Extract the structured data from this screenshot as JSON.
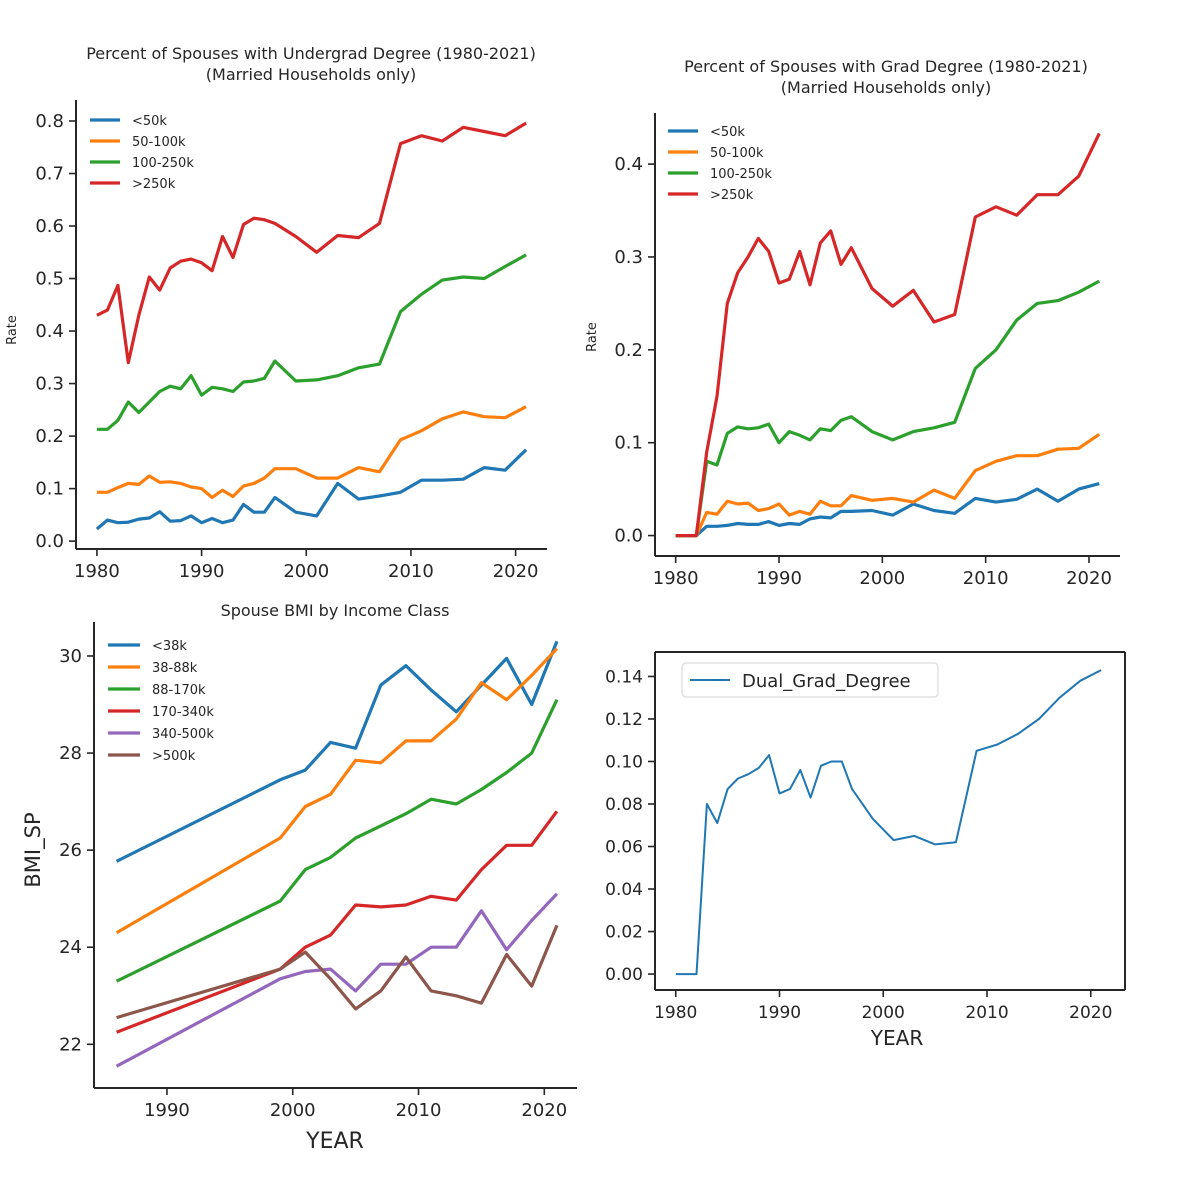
{
  "chart_data": [
    {
      "type": "line",
      "title": [
        "Percent of Spouses with Undergrad Degree (1980-2021)",
        "(Married Households only)"
      ],
      "xlabel": "",
      "ylabel": "Rate",
      "xlim": [
        1978,
        2023
      ],
      "ylim": [
        -0.015,
        0.84
      ],
      "xticks": [
        1980,
        1990,
        2000,
        2010,
        2020
      ],
      "yticks": [
        0.0,
        0.1,
        0.2,
        0.3,
        0.4,
        0.5,
        0.6,
        0.7,
        0.8
      ],
      "ytick_decimals": 1,
      "legend": "top-left",
      "x": [
        1980,
        1981,
        1982,
        1983,
        1984,
        1985,
        1986,
        1987,
        1988,
        1989,
        1990,
        1991,
        1992,
        1993,
        1994,
        1995,
        1996,
        1997,
        1999,
        2001,
        2003,
        2005,
        2007,
        2009,
        2011,
        2013,
        2015,
        2017,
        2019,
        2021
      ],
      "series": [
        {
          "name": "<50k",
          "color": "#1f77b4",
          "values": [
            0.023,
            0.04,
            0.035,
            0.036,
            0.042,
            0.044,
            0.056,
            0.038,
            0.039,
            0.048,
            0.035,
            0.043,
            0.035,
            0.04,
            0.07,
            0.055,
            0.055,
            0.083,
            0.055,
            0.048,
            0.11,
            0.08,
            0.086,
            0.093,
            0.116,
            0.116,
            0.118,
            0.14,
            0.135,
            0.174
          ]
        },
        {
          "name": "50-100k",
          "color": "#ff7f0e",
          "values": [
            0.093,
            0.093,
            0.102,
            0.11,
            0.108,
            0.124,
            0.112,
            0.113,
            0.11,
            0.103,
            0.1,
            0.083,
            0.097,
            0.085,
            0.105,
            0.11,
            0.12,
            0.138,
            0.138,
            0.12,
            0.12,
            0.14,
            0.132,
            0.193,
            0.21,
            0.233,
            0.246,
            0.237,
            0.235,
            0.256
          ]
        },
        {
          "name": "100-250k",
          "color": "#2ca02c",
          "values": [
            0.213,
            0.213,
            0.23,
            0.265,
            0.245,
            0.265,
            0.285,
            0.295,
            0.29,
            0.315,
            0.278,
            0.293,
            0.29,
            0.285,
            0.303,
            0.305,
            0.31,
            0.343,
            0.305,
            0.307,
            0.315,
            0.33,
            0.337,
            0.437,
            0.47,
            0.497,
            0.503,
            0.5,
            0.523,
            0.545
          ]
        },
        {
          "name": ">250k",
          "color": "#d62728",
          "values": [
            0.43,
            0.44,
            0.487,
            0.34,
            0.43,
            0.503,
            0.478,
            0.52,
            0.533,
            0.537,
            0.53,
            0.515,
            0.58,
            0.54,
            0.603,
            0.615,
            0.612,
            0.605,
            0.58,
            0.55,
            0.582,
            0.578,
            0.605,
            0.757,
            0.772,
            0.762,
            0.788,
            0.78,
            0.772,
            0.796
          ]
        }
      ]
    },
    {
      "type": "line",
      "title": [
        "Percent of Spouses with Grad Degree (1980-2021)",
        "(Married Households only)"
      ],
      "xlabel": "",
      "ylabel": "Rate",
      "xlim": [
        1978,
        2023
      ],
      "ylim": [
        -0.022,
        0.455
      ],
      "xticks": [
        1980,
        1990,
        2000,
        2010,
        2020
      ],
      "yticks": [
        0.0,
        0.1,
        0.2,
        0.3,
        0.4
      ],
      "ytick_decimals": 1,
      "legend": "top-left",
      "x": [
        1980,
        1981,
        1982,
        1983,
        1984,
        1985,
        1986,
        1987,
        1988,
        1989,
        1990,
        1991,
        1992,
        1993,
        1994,
        1995,
        1996,
        1997,
        1999,
        2001,
        2003,
        2005,
        2007,
        2009,
        2011,
        2013,
        2015,
        2017,
        2019,
        2021
      ],
      "series": [
        {
          "name": "<50k",
          "color": "#1f77b4",
          "values": [
            0,
            0,
            0,
            0.01,
            0.01,
            0.011,
            0.013,
            0.012,
            0.012,
            0.015,
            0.011,
            0.013,
            0.012,
            0.018,
            0.02,
            0.019,
            0.026,
            0.026,
            0.027,
            0.022,
            0.034,
            0.027,
            0.024,
            0.04,
            0.036,
            0.039,
            0.05,
            0.037,
            0.05,
            0.056
          ]
        },
        {
          "name": "50-100k",
          "color": "#ff7f0e",
          "values": [
            0,
            0,
            0,
            0.025,
            0.023,
            0.037,
            0.034,
            0.035,
            0.027,
            0.029,
            0.034,
            0.022,
            0.026,
            0.023,
            0.037,
            0.032,
            0.032,
            0.043,
            0.038,
            0.04,
            0.036,
            0.049,
            0.04,
            0.07,
            0.08,
            0.086,
            0.086,
            0.093,
            0.094,
            0.109
          ]
        },
        {
          "name": "100-250k",
          "color": "#2ca02c",
          "values": [
            0,
            0,
            0,
            0.08,
            0.076,
            0.11,
            0.117,
            0.115,
            0.116,
            0.12,
            0.1,
            0.112,
            0.108,
            0.103,
            0.115,
            0.113,
            0.124,
            0.128,
            0.112,
            0.103,
            0.112,
            0.116,
            0.122,
            0.18,
            0.2,
            0.232,
            0.25,
            0.253,
            0.262,
            0.274
          ]
        },
        {
          "name": ">250k",
          "color": "#d62728",
          "values": [
            0,
            0,
            0,
            0.09,
            0.15,
            0.25,
            0.283,
            0.3,
            0.32,
            0.306,
            0.272,
            0.276,
            0.306,
            0.27,
            0.315,
            0.328,
            0.292,
            0.31,
            0.266,
            0.247,
            0.264,
            0.23,
            0.238,
            0.343,
            0.354,
            0.345,
            0.367,
            0.367,
            0.387,
            0.433
          ]
        }
      ]
    },
    {
      "type": "line",
      "title": [
        "Spouse BMI by Income Class"
      ],
      "xlabel": "YEAR",
      "ylabel": "BMI_SP",
      "xlim": [
        1984.2,
        2022.6
      ],
      "ylim": [
        21.1,
        30.7
      ],
      "xticks": [
        1990,
        2000,
        2010,
        2020
      ],
      "yticks": [
        22,
        24,
        26,
        28,
        30
      ],
      "ytick_decimals": 0,
      "legend": "top-left",
      "x": [
        1986,
        1999,
        2001,
        2003,
        2005,
        2007,
        2009,
        2011,
        2013,
        2015,
        2017,
        2019,
        2021
      ],
      "series": [
        {
          "name": "<38k",
          "color": "#1f77b4",
          "values": [
            25.77,
            27.45,
            27.65,
            28.22,
            28.1,
            29.4,
            29.8,
            29.3,
            28.85,
            29.4,
            29.95,
            29.0,
            30.3
          ]
        },
        {
          "name": "38-88k",
          "color": "#ff7f0e",
          "values": [
            24.3,
            26.25,
            26.9,
            27.15,
            27.85,
            27.8,
            28.25,
            28.25,
            28.7,
            29.45,
            29.1,
            29.6,
            30.15
          ]
        },
        {
          "name": "88-170k",
          "color": "#2ca02c",
          "values": [
            23.3,
            24.95,
            25.6,
            25.85,
            26.25,
            26.5,
            26.75,
            27.05,
            26.95,
            27.25,
            27.6,
            28.0,
            29.1
          ]
        },
        {
          "name": "170-340k",
          "color": "#d62728",
          "values": [
            22.25,
            23.55,
            24.0,
            24.25,
            24.87,
            24.83,
            24.87,
            25.05,
            24.97,
            25.6,
            26.1,
            26.1,
            26.8
          ]
        },
        {
          "name": "340-500k",
          "color": "#9467bd",
          "values": [
            21.55,
            23.35,
            23.5,
            23.55,
            23.1,
            23.65,
            23.65,
            24.0,
            24.0,
            24.75,
            23.95,
            24.55,
            25.1
          ]
        },
        {
          "name": ">500k",
          "color": "#8c564b",
          "values": [
            22.55,
            23.55,
            23.9,
            23.35,
            22.73,
            23.1,
            23.8,
            23.1,
            23.0,
            22.85,
            23.85,
            23.2,
            24.45
          ]
        }
      ]
    },
    {
      "type": "line",
      "title": [],
      "xlabel": "YEAR",
      "ylabel": "",
      "xlim": [
        1978,
        2023.3
      ],
      "ylim": [
        -0.0075,
        0.1515
      ],
      "xticks": [
        1980,
        1990,
        2000,
        2010,
        2020
      ],
      "yticks": [
        0.0,
        0.02,
        0.04,
        0.06,
        0.08,
        0.1,
        0.12,
        0.14
      ],
      "ytick_decimals": 2,
      "legend": "top-left",
      "x": [
        1980,
        1981,
        1982,
        1983,
        1984,
        1985,
        1986,
        1987,
        1988,
        1989,
        1990,
        1991,
        1992,
        1993,
        1994,
        1995,
        1996,
        1997,
        1999,
        2001,
        2003,
        2005,
        2007,
        2009,
        2011,
        2013,
        2015,
        2017,
        2019,
        2021
      ],
      "series": [
        {
          "name": "Dual_Grad_Degree",
          "color": "#1f77b4",
          "values": [
            0,
            0,
            0,
            0.08,
            0.071,
            0.087,
            0.092,
            0.094,
            0.097,
            0.103,
            0.085,
            0.087,
            0.096,
            0.083,
            0.098,
            0.1,
            0.1,
            0.087,
            0.073,
            0.063,
            0.065,
            0.061,
            0.062,
            0.105,
            0.108,
            0.113,
            0.12,
            0.13,
            0.138,
            0.143
          ]
        }
      ]
    }
  ]
}
